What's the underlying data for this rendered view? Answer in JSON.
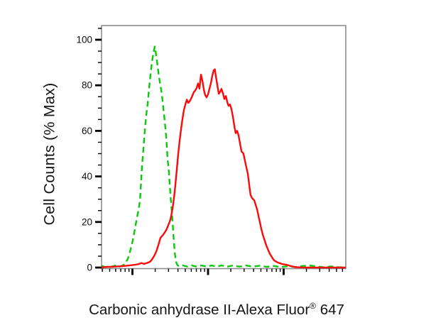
{
  "figure_name": "flow-cytometry-overlay-histogram",
  "y_axis": {
    "label": "Cell Counts (% Max)",
    "major_tick_values": [
      0,
      20,
      40,
      60,
      80,
      100
    ],
    "tick_labels": [
      "0",
      "20",
      "40",
      "60",
      "80",
      "100"
    ],
    "minor_tick_step": 5,
    "minor_tick_max": 105,
    "range_shown": [
      0,
      106.5
    ]
  },
  "x_axis": {
    "label_prefix": "Carbonic anhydrase II-Alexa Fluor",
    "label_registered": "®",
    "label_suffix": " 647",
    "scale": "log",
    "tick_labels_shown": false,
    "decade_fractions": [
      0.1265,
      0.436,
      0.7456
    ],
    "decade_width_fraction": 0.3096
  },
  "colors": {
    "green_curve": "#0cc80c",
    "red_curve": "#fa0a0a",
    "axis_box": "#8e8e8e",
    "ticks": "#000000",
    "text": "#151515",
    "background": "#ffffff"
  },
  "chart_data": {
    "type": "line",
    "subtype": "flow-cytometry-histogram-overlay",
    "title": "",
    "xlabel": "Carbonic anhydrase II-Alexa Fluor® 647",
    "ylabel": "Cell Counts (% Max)",
    "ylim": [
      0,
      106.5
    ],
    "x_unit": "fraction along log-scaled fluorescence axis (decades unlabeled)",
    "legend_shown": false,
    "grid": false,
    "series": [
      {
        "name": "green-dashed-histogram",
        "color": "#0cc80c",
        "style": "dashed",
        "peak": {
          "x": 0.218,
          "y": 97
        },
        "points": [
          [
            0.0,
            0.8
          ],
          [
            0.012,
            0.3
          ],
          [
            0.026,
            0.0
          ],
          [
            0.044,
            0.5
          ],
          [
            0.058,
            0.9
          ],
          [
            0.073,
            0.4
          ],
          [
            0.084,
            0.8
          ],
          [
            0.096,
            1.5
          ],
          [
            0.108,
            4
          ],
          [
            0.119,
            8
          ],
          [
            0.128,
            12
          ],
          [
            0.137,
            17
          ],
          [
            0.145,
            22
          ],
          [
            0.151,
            25
          ],
          [
            0.157,
            29
          ],
          [
            0.161,
            36
          ],
          [
            0.166,
            45
          ],
          [
            0.172,
            53
          ],
          [
            0.177,
            60
          ],
          [
            0.183,
            67
          ],
          [
            0.189,
            72
          ],
          [
            0.195,
            79
          ],
          [
            0.201,
            85
          ],
          [
            0.206,
            90
          ],
          [
            0.212,
            94
          ],
          [
            0.218,
            97
          ],
          [
            0.224,
            93
          ],
          [
            0.23,
            88
          ],
          [
            0.235,
            84
          ],
          [
            0.241,
            80
          ],
          [
            0.247,
            76
          ],
          [
            0.253,
            70
          ],
          [
            0.259,
            64
          ],
          [
            0.265,
            57
          ],
          [
            0.27,
            48
          ],
          [
            0.276,
            42
          ],
          [
            0.282,
            32
          ],
          [
            0.288,
            24
          ],
          [
            0.294,
            15
          ],
          [
            0.299,
            7
          ],
          [
            0.305,
            2.5
          ],
          [
            0.311,
            1
          ],
          [
            0.32,
            0.5
          ],
          [
            0.334,
            0.9
          ],
          [
            0.352,
            0.4
          ],
          [
            0.369,
            0.9
          ],
          [
            0.39,
            0.4
          ],
          [
            0.41,
            0.9
          ],
          [
            0.43,
            0.4
          ],
          [
            0.451,
            0.9
          ],
          [
            0.471,
            0.4
          ],
          [
            0.491,
            0.9
          ],
          [
            0.515,
            0.4
          ],
          [
            0.538,
            0.9
          ],
          [
            0.564,
            0.4
          ],
          [
            0.59,
            0.9
          ],
          [
            0.619,
            0.4
          ],
          [
            0.648,
            0.8
          ],
          [
            0.677,
            0.3
          ],
          [
            0.706,
            0.7
          ],
          [
            0.735,
            0.2
          ],
          [
            0.765,
            0.6
          ],
          [
            0.794,
            0.2
          ],
          [
            0.823,
            0.7
          ],
          [
            0.852,
            0.9
          ],
          [
            0.881,
            0.5
          ],
          [
            0.91,
            0.1
          ],
          [
            0.939,
            0.5
          ],
          [
            0.968,
            0.2
          ],
          [
            1.0,
            0.0
          ]
        ]
      },
      {
        "name": "red-solid-histogram",
        "color": "#fa0a0a",
        "style": "solid",
        "peak": {
          "x": 0.464,
          "y": 87
        },
        "points": [
          [
            0.0,
            0.0
          ],
          [
            0.02,
            0.3
          ],
          [
            0.044,
            0.3
          ],
          [
            0.064,
            0.5
          ],
          [
            0.084,
            0.6
          ],
          [
            0.102,
            0.8
          ],
          [
            0.119,
            1.0
          ],
          [
            0.137,
            1.2
          ],
          [
            0.151,
            1.5
          ],
          [
            0.163,
            2.0
          ],
          [
            0.174,
            1.6
          ],
          [
            0.186,
            2.0
          ],
          [
            0.198,
            2.5
          ],
          [
            0.206,
            3.5
          ],
          [
            0.215,
            5
          ],
          [
            0.224,
            7
          ],
          [
            0.233,
            10
          ],
          [
            0.241,
            13
          ],
          [
            0.253,
            14.5
          ],
          [
            0.265,
            16.5
          ],
          [
            0.273,
            18.5
          ],
          [
            0.282,
            21
          ],
          [
            0.291,
            26
          ],
          [
            0.297,
            31
          ],
          [
            0.302,
            36
          ],
          [
            0.308,
            43
          ],
          [
            0.314,
            50
          ],
          [
            0.32,
            56
          ],
          [
            0.326,
            61
          ],
          [
            0.331,
            65
          ],
          [
            0.337,
            69
          ],
          [
            0.343,
            71.5
          ],
          [
            0.349,
            73.7
          ],
          [
            0.355,
            72.3
          ],
          [
            0.36,
            72.8
          ],
          [
            0.366,
            74
          ],
          [
            0.372,
            75.5
          ],
          [
            0.378,
            77
          ],
          [
            0.384,
            77.8
          ],
          [
            0.39,
            79
          ],
          [
            0.395,
            80.8
          ],
          [
            0.401,
            78.5
          ],
          [
            0.407,
            84.7
          ],
          [
            0.413,
            82
          ],
          [
            0.419,
            78
          ],
          [
            0.424,
            75.8
          ],
          [
            0.43,
            74.7
          ],
          [
            0.436,
            76
          ],
          [
            0.442,
            78.5
          ],
          [
            0.448,
            81
          ],
          [
            0.453,
            84
          ],
          [
            0.459,
            86.5
          ],
          [
            0.464,
            87
          ],
          [
            0.468,
            84
          ],
          [
            0.474,
            80
          ],
          [
            0.48,
            76.3
          ],
          [
            0.485,
            77
          ],
          [
            0.491,
            78.4
          ],
          [
            0.497,
            76.5
          ],
          [
            0.503,
            74
          ],
          [
            0.509,
            75.3
          ],
          [
            0.515,
            72.5
          ],
          [
            0.52,
            71
          ],
          [
            0.526,
            71.6
          ],
          [
            0.532,
            69.5
          ],
          [
            0.538,
            66
          ],
          [
            0.544,
            62
          ],
          [
            0.549,
            59
          ],
          [
            0.555,
            60
          ],
          [
            0.561,
            58
          ],
          [
            0.567,
            54.5
          ],
          [
            0.573,
            51
          ],
          [
            0.581,
            50
          ],
          [
            0.587,
            47
          ],
          [
            0.593,
            44
          ],
          [
            0.599,
            41
          ],
          [
            0.605,
            36
          ],
          [
            0.61,
            32
          ],
          [
            0.616,
            30.5
          ],
          [
            0.625,
            29.5
          ],
          [
            0.631,
            27.5
          ],
          [
            0.637,
            25.5
          ],
          [
            0.642,
            23
          ],
          [
            0.648,
            20
          ],
          [
            0.654,
            17
          ],
          [
            0.66,
            14.5
          ],
          [
            0.666,
            12.5
          ],
          [
            0.672,
            10.5
          ],
          [
            0.677,
            9
          ],
          [
            0.683,
            7.5
          ],
          [
            0.689,
            6
          ],
          [
            0.695,
            5
          ],
          [
            0.701,
            4
          ],
          [
            0.706,
            3.2
          ],
          [
            0.715,
            2.6
          ],
          [
            0.724,
            2.1
          ],
          [
            0.733,
            1.8
          ],
          [
            0.741,
            1.5
          ],
          [
            0.753,
            1.3
          ],
          [
            0.765,
            1.0
          ],
          [
            0.776,
            0.6
          ],
          [
            0.788,
            0.3
          ],
          [
            0.799,
            0.15
          ],
          [
            0.817,
            0.05
          ],
          [
            0.84,
            0.0
          ],
          [
            0.878,
            0.0
          ],
          [
            0.921,
            0.0
          ],
          [
            0.962,
            0.0
          ],
          [
            1.0,
            0.0
          ]
        ]
      }
    ]
  }
}
